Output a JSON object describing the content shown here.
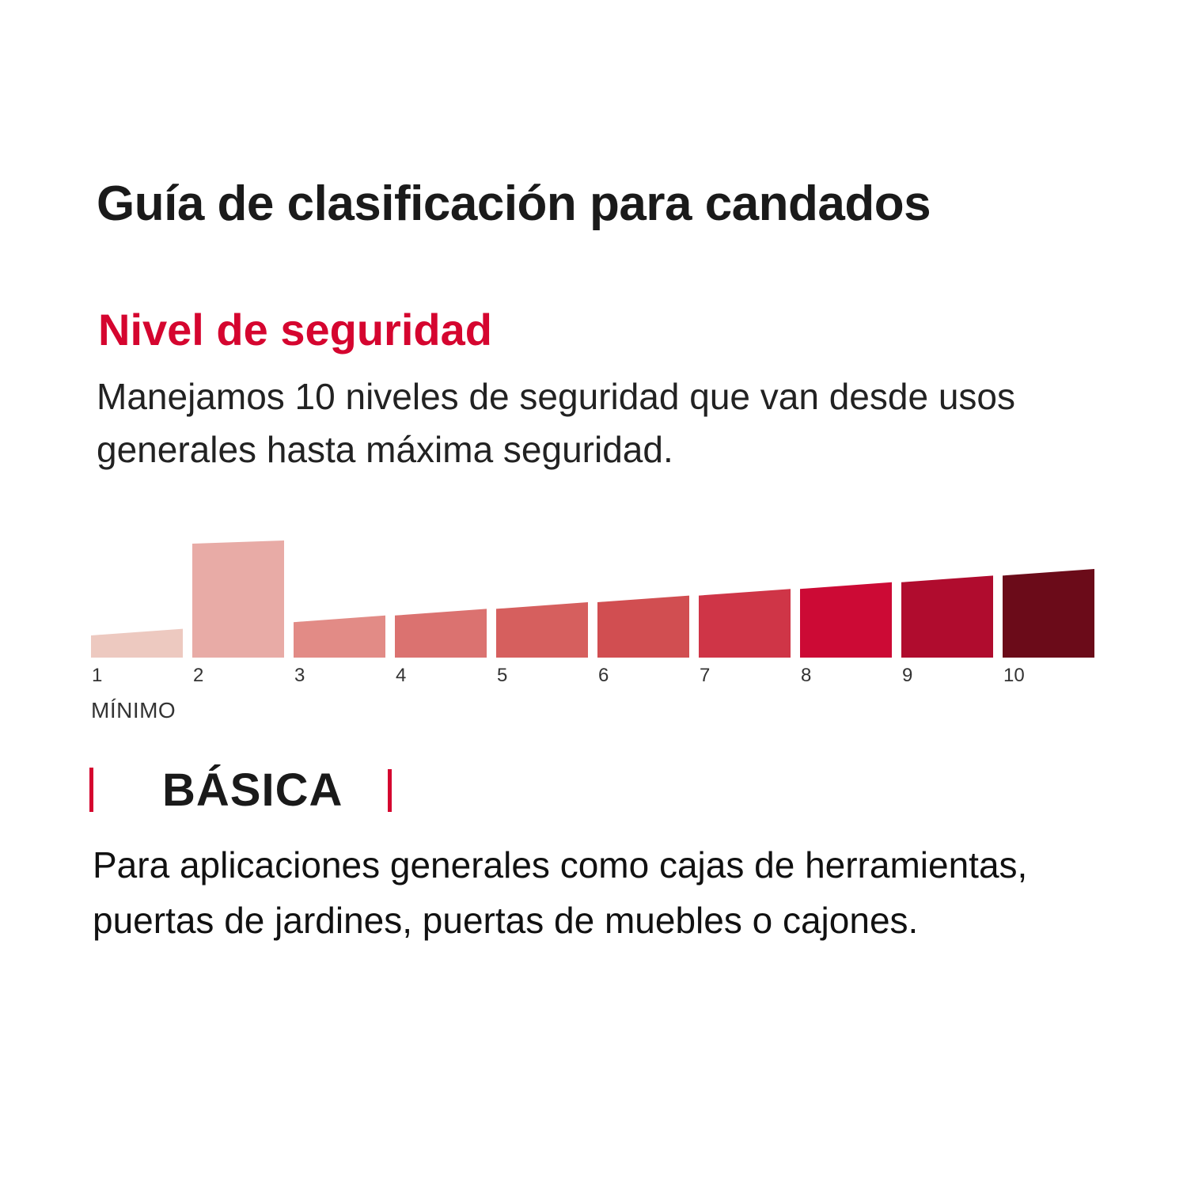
{
  "title": "Guía de clasificación para candados",
  "subtitle": "Nivel de seguridad",
  "intro": "Manejamos 10 niveles de seguridad que van desde usos generales hasta máxima seguridad.",
  "scale": {
    "levels": [
      "1",
      "2",
      "3",
      "4",
      "5",
      "6",
      "7",
      "8",
      "9",
      "10"
    ],
    "selected_level": 2,
    "min_label": "MÍNIMO",
    "colors": [
      "#edc9c0",
      "#e8aba6",
      "#e28b86",
      "#db7270",
      "#d65f5e",
      "#d14e51",
      "#cf3547",
      "#cc0a35",
      "#b00c2e",
      "#6b0b19"
    ]
  },
  "level": {
    "name": "BÁSICA",
    "description": "Para aplicaciones generales como cajas de herramientas, puertas de jardines, puertas de muebles o cajones."
  }
}
